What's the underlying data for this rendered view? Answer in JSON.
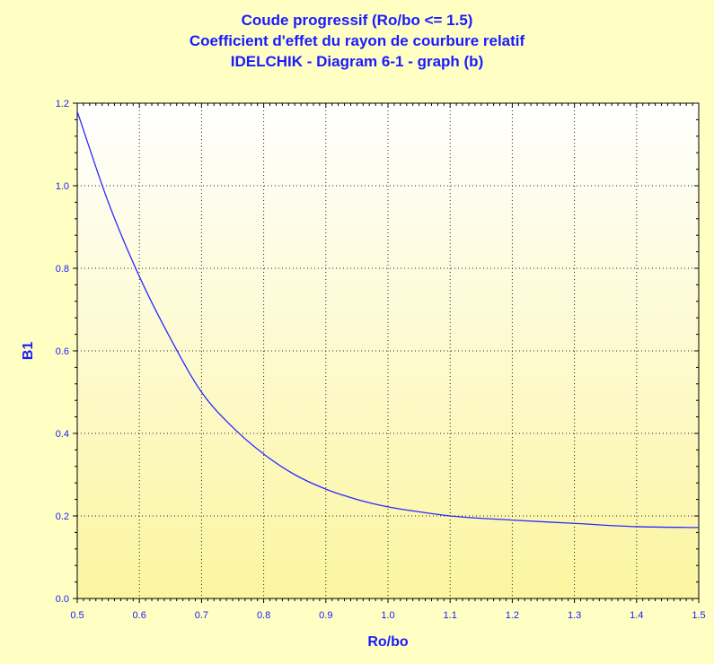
{
  "chart_data": {
    "type": "line",
    "title_lines": [
      "Coude progressif (Ro/bo <= 1.5)",
      "Coefficient d'effet du rayon de courbure relatif",
      "IDELCHIK - Diagram 6-1 - graph (b)"
    ],
    "xlabel": "Ro/bo",
    "ylabel": "B1",
    "xlim": [
      0.5,
      1.5
    ],
    "ylim": [
      0.0,
      1.2
    ],
    "x_ticks": [
      "0.5",
      "0.6",
      "0.7",
      "0.8",
      "0.9",
      "1.0",
      "1.1",
      "1.2",
      "1.3",
      "1.4",
      "1.5"
    ],
    "y_ticks": [
      "0.0",
      "0.2",
      "0.4",
      "0.6",
      "0.8",
      "1.0",
      "1.2"
    ],
    "grid": true,
    "series": [
      {
        "x": [
          0.5,
          0.55,
          0.6,
          0.65,
          0.7,
          0.75,
          0.8,
          0.85,
          0.9,
          0.95,
          1.0,
          1.05,
          1.1,
          1.2,
          1.3,
          1.4,
          1.5
        ],
        "y": [
          1.18,
          0.96,
          0.78,
          0.63,
          0.5,
          0.415,
          0.35,
          0.3,
          0.265,
          0.24,
          0.222,
          0.21,
          0.2,
          0.19,
          0.182,
          0.174,
          0.172
        ]
      }
    ],
    "colors": {
      "line": "#2a2aff",
      "text": "#1a1aff",
      "background": "#ffffc4",
      "plot_top": "#ffffff",
      "plot_bottom": "#fbf5a0"
    }
  }
}
